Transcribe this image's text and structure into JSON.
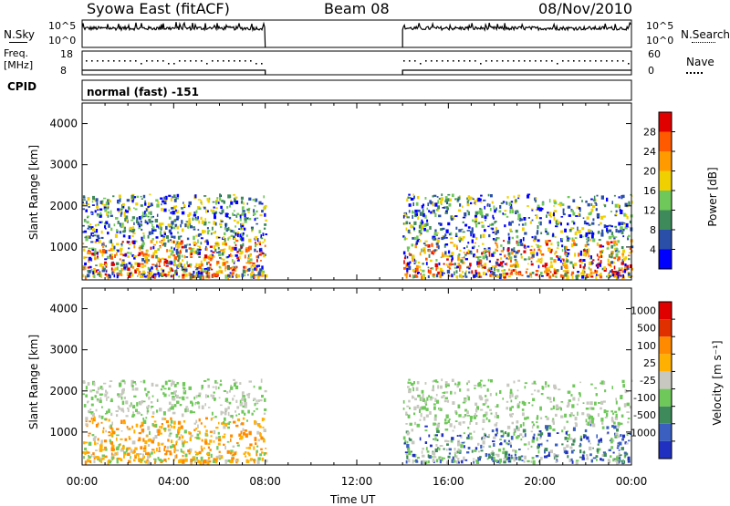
{
  "header": {
    "station": "Syowa East (fitACF)",
    "beam": "Beam 08",
    "date": "08/Nov/2010"
  },
  "sky_panel": {
    "left_label": "N.Sky",
    "right_label": "N.Search",
    "left_ticks": [
      "10^5",
      "10^0"
    ],
    "right_ticks": [
      "10^5",
      "10^0"
    ]
  },
  "freq_panel": {
    "left_label_line1": "Freq.",
    "left_label_line2": "[MHz]",
    "right_label": "Nave",
    "left_ticks": [
      "18",
      "8"
    ],
    "right_ticks": [
      "60",
      "0"
    ]
  },
  "cpid": {
    "label": "CPID",
    "value": "normal (fast) -151"
  },
  "x_axis": {
    "ticks": [
      "00:00",
      "04:00",
      "08:00",
      "12:00",
      "16:00",
      "20:00",
      "00:00"
    ],
    "label": "Time UT"
  },
  "chart_data": [
    {
      "type": "heatmap",
      "quantity": "power",
      "ylabel": "Slant Range [km]",
      "y_ticks": [
        "4000",
        "3000",
        "2000",
        "1000"
      ],
      "ylim": [
        200,
        4500
      ],
      "colorbar_label": "Power [dB]",
      "colorbar_ticks": [
        "28",
        "24",
        "20",
        "16",
        "12",
        "8",
        "4"
      ],
      "colorbar_colors": [
        "#0000ff",
        "#2a4fa8",
        "#3f8a5a",
        "#6fc85a",
        "#f0d000",
        "#ff9a00",
        "#ff5a00",
        "#e00000"
      ],
      "data_gaps_hours": [
        [
          8.0,
          14.0
        ]
      ],
      "scatter_range_km": [
        300,
        2300
      ]
    },
    {
      "type": "heatmap",
      "quantity": "velocity",
      "ylabel": "Slant Range [km]",
      "y_ticks": [
        "4000",
        "3000",
        "2000",
        "1000"
      ],
      "ylim": [
        200,
        4500
      ],
      "colorbar_label": "Velocity [m s⁻¹]",
      "colorbar_ticks": [
        "1000",
        "500",
        "100",
        "25",
        "-25",
        "-100",
        "-500",
        "-1000"
      ],
      "colorbar_colors": [
        "#2030c0",
        "#3a5fc0",
        "#3f8a5a",
        "#6fc85a",
        "#c8c8c0",
        "#ffb000",
        "#ff8a00",
        "#e03000",
        "#e00000"
      ],
      "data_gaps_hours": [
        [
          8.0,
          14.0
        ]
      ],
      "scatter_range_km": [
        300,
        2300
      ]
    }
  ]
}
